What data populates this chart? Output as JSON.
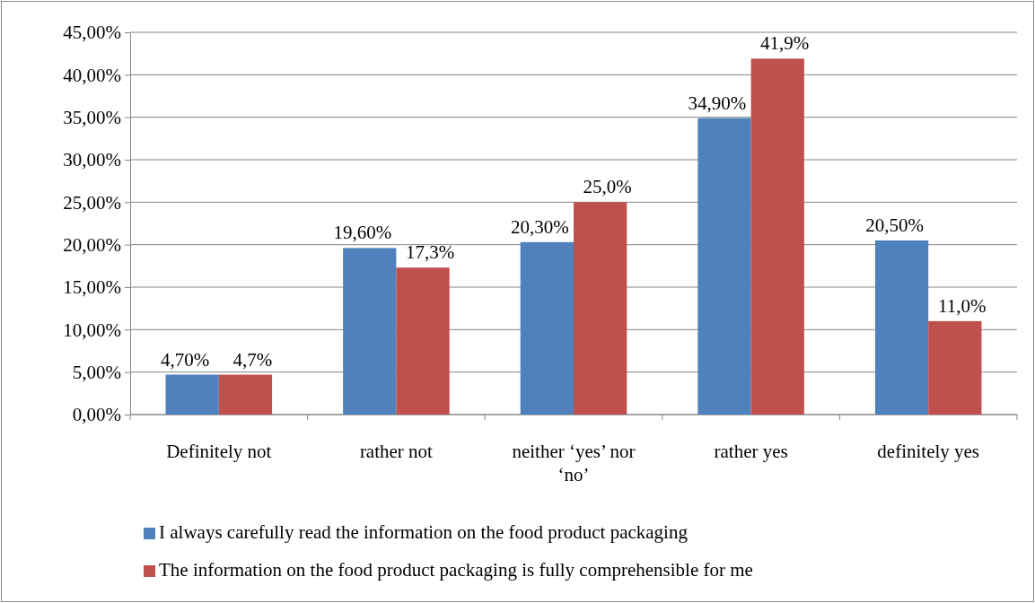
{
  "chart_data": {
    "type": "bar",
    "categories": [
      "Definitely not",
      "rather not",
      "neither ‘yes’ nor ‘no’",
      "rather yes",
      "definitely yes"
    ],
    "series": [
      {
        "name": "I always carefully read the information on the food product packaging",
        "color": "#4f81bd",
        "values": [
          4.7,
          19.6,
          20.3,
          34.9,
          20.5
        ],
        "value_labels": [
          "4,70%",
          "19,60%",
          "20,30%",
          "34,90%",
          "20,50%"
        ]
      },
      {
        "name": "The information on the food product packaging is fully comprehensible for me",
        "color": "#c0504d",
        "values": [
          4.7,
          17.3,
          25.0,
          41.9,
          11.0
        ],
        "value_labels": [
          "4,7%",
          "17,3%",
          "25,0%",
          "41,9%",
          "11,0%"
        ]
      }
    ],
    "ylim": [
      0,
      45
    ],
    "yticks": [
      {
        "value": 0,
        "label": "0,00%"
      },
      {
        "value": 5,
        "label": "5,00%"
      },
      {
        "value": 10,
        "label": "10,00%"
      },
      {
        "value": 15,
        "label": "15,00%"
      },
      {
        "value": 20,
        "label": "20,00%"
      },
      {
        "value": 25,
        "label": "25,00%"
      },
      {
        "value": 30,
        "label": "30,00%"
      },
      {
        "value": 35,
        "label": "35,00%"
      },
      {
        "value": 40,
        "label": "40,00%"
      },
      {
        "value": 45,
        "label": "45,00%"
      }
    ],
    "grid": "y",
    "legend": "bottom"
  }
}
